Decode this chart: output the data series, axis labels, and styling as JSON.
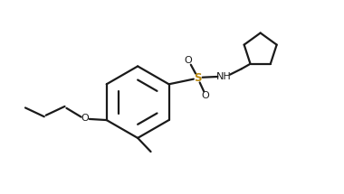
{
  "background_color": "#ffffff",
  "line_color": "#1a1a1a",
  "S_color": "#b8860b",
  "O_color": "#1a1a1a",
  "N_color": "#1a1a1a",
  "line_width": 1.6,
  "figsize": [
    3.8,
    2.15
  ],
  "dpi": 100,
  "xlim": [
    0,
    10
  ],
  "ylim": [
    0,
    5.5
  ]
}
